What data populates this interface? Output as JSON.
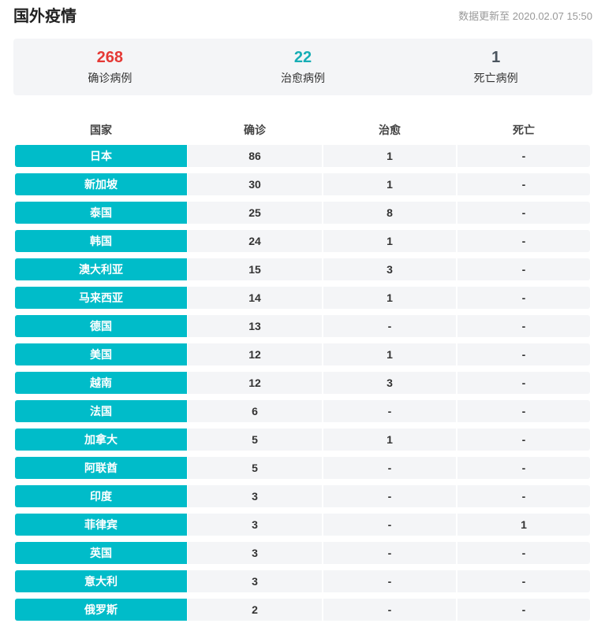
{
  "header": {
    "title": "国外疫情",
    "update_time": "数据更新至 2020.02.07 15:50"
  },
  "summary": {
    "confirmed": {
      "value": "268",
      "label": "确诊病例"
    },
    "cured": {
      "value": "22",
      "label": "治愈病例"
    },
    "dead": {
      "value": "1",
      "label": "死亡病例"
    }
  },
  "colors": {
    "accent": "#00bcc9",
    "confirmed": "#e53935",
    "cured": "#17aeb5",
    "dead": "#4a545e",
    "panel": "#f4f5f7"
  },
  "table": {
    "columns": [
      "国家",
      "确诊",
      "治愈",
      "死亡"
    ],
    "rows": [
      {
        "country": "日本",
        "confirmed": "86",
        "cured": "1",
        "dead": "-"
      },
      {
        "country": "新加坡",
        "confirmed": "30",
        "cured": "1",
        "dead": "-"
      },
      {
        "country": "泰国",
        "confirmed": "25",
        "cured": "8",
        "dead": "-"
      },
      {
        "country": "韩国",
        "confirmed": "24",
        "cured": "1",
        "dead": "-"
      },
      {
        "country": "澳大利亚",
        "confirmed": "15",
        "cured": "3",
        "dead": "-"
      },
      {
        "country": "马来西亚",
        "confirmed": "14",
        "cured": "1",
        "dead": "-"
      },
      {
        "country": "德国",
        "confirmed": "13",
        "cured": "-",
        "dead": "-"
      },
      {
        "country": "美国",
        "confirmed": "12",
        "cured": "1",
        "dead": "-"
      },
      {
        "country": "越南",
        "confirmed": "12",
        "cured": "3",
        "dead": "-"
      },
      {
        "country": "法国",
        "confirmed": "6",
        "cured": "-",
        "dead": "-"
      },
      {
        "country": "加拿大",
        "confirmed": "5",
        "cured": "1",
        "dead": "-"
      },
      {
        "country": "阿联酋",
        "confirmed": "5",
        "cured": "-",
        "dead": "-"
      },
      {
        "country": "印度",
        "confirmed": "3",
        "cured": "-",
        "dead": "-"
      },
      {
        "country": "菲律宾",
        "confirmed": "3",
        "cured": "-",
        "dead": "1"
      },
      {
        "country": "英国",
        "confirmed": "3",
        "cured": "-",
        "dead": "-"
      },
      {
        "country": "意大利",
        "confirmed": "3",
        "cured": "-",
        "dead": "-"
      },
      {
        "country": "俄罗斯",
        "confirmed": "2",
        "cured": "-",
        "dead": "-"
      }
    ]
  }
}
